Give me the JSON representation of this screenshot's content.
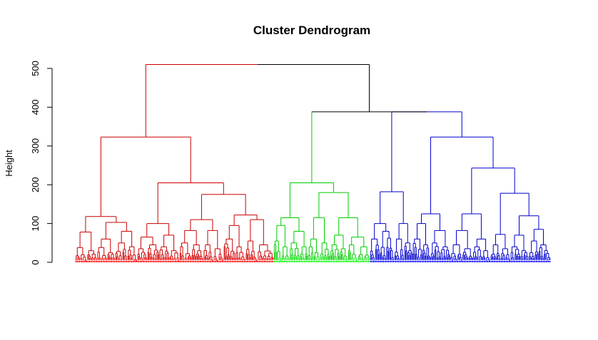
{
  "chart_data": {
    "type": "dendrogram",
    "title": "Cluster Dendrogram",
    "ylabel": "Height",
    "xlabel": "",
    "ylim": [
      0,
      510
    ],
    "yticks": [
      0,
      100,
      200,
      300,
      400,
      500
    ],
    "grid": false,
    "legend": "none",
    "root_height": 510,
    "clusters": [
      {
        "color": "#ff0000",
        "leaf_count": 280
      },
      {
        "color": "#00ff00",
        "leaf_count": 138
      },
      {
        "color": "#0000ff",
        "leaf_count": 245
      }
    ],
    "link_colors": {
      "root": "#000000",
      "red": "#cc0000",
      "green": "#00cc00",
      "blue": "#0000cc"
    },
    "tree": {
      "c": "black",
      "h": 510,
      "ch": [
        {
          "c": "red",
          "h": 323,
          "ch": [
            {
              "c": "red",
              "h": 118,
              "ch": [
                {
                  "c": "red",
                  "h": 78,
                  "ch": [
                    {
                      "c": "red",
                      "h": 38,
                      "n": 12
                    },
                    {
                      "c": "red",
                      "h": 30,
                      "n": 10
                    }
                  ]
                },
                {
                  "c": "red",
                  "h": 103,
                  "ch": [
                    {
                      "c": "red",
                      "h": 60,
                      "ch": [
                        {
                          "c": "red",
                          "h": 38,
                          "n": 10
                        },
                        {
                          "c": "red",
                          "h": 25,
                          "n": 8
                        }
                      ]
                    },
                    {
                      "c": "red",
                      "h": 80,
                      "ch": [
                        {
                          "c": "red",
                          "h": 50,
                          "n": 12
                        },
                        {
                          "c": "red",
                          "h": 40,
                          "n": 10
                        }
                      ]
                    }
                  ]
                }
              ]
            },
            {
              "c": "red",
              "h": 205,
              "ch": [
                {
                  "c": "red",
                  "h": 100,
                  "ch": [
                    {
                      "c": "red",
                      "h": 65,
                      "ch": [
                        {
                          "c": "red",
                          "h": 35,
                          "n": 10
                        },
                        {
                          "c": "red",
                          "h": 45,
                          "n": 12
                        }
                      ]
                    },
                    {
                      "c": "red",
                      "h": 70,
                      "ch": [
                        {
                          "c": "red",
                          "h": 40,
                          "n": 10
                        },
                        {
                          "c": "red",
                          "h": 30,
                          "n": 10
                        }
                      ]
                    }
                  ]
                },
                {
                  "c": "red",
                  "h": 175,
                  "ch": [
                    {
                      "c": "red",
                      "h": 110,
                      "ch": [
                        {
                          "c": "red",
                          "h": 82,
                          "ch": [
                            {
                              "c": "red",
                              "h": 50,
                              "n": 12
                            },
                            {
                              "c": "red",
                              "h": 45,
                              "n": 12
                            }
                          ]
                        },
                        {
                          "c": "red",
                          "h": 82,
                          "ch": [
                            {
                              "c": "red",
                              "h": 45,
                              "n": 10
                            },
                            {
                              "c": "red",
                              "h": 35,
                              "n": 10
                            }
                          ]
                        }
                      ]
                    },
                    {
                      "c": "red",
                      "h": 122,
                      "ch": [
                        {
                          "c": "red",
                          "h": 95,
                          "ch": [
                            {
                              "c": "red",
                              "h": 60,
                              "n": 12
                            },
                            {
                              "c": "red",
                              "h": 40,
                              "n": 10
                            }
                          ]
                        },
                        {
                          "c": "red",
                          "h": 110,
                          "ch": [
                            {
                              "c": "red",
                              "h": 55,
                              "n": 12
                            },
                            {
                              "c": "red",
                              "h": 45,
                              "n": 16
                            }
                          ]
                        }
                      ]
                    }
                  ]
                }
              ]
            }
          ]
        },
        {
          "c": "black",
          "h": 388,
          "ch": [
            {
              "c": "green",
              "h": 388,
              "ch": [
                {
                  "c": "green",
                  "h": 205,
                  "ch": [
                    {
                      "c": "green",
                      "h": 115,
                      "ch": [
                        {
                          "c": "green",
                          "h": 95,
                          "ch": [
                            {
                              "c": "green",
                              "h": 55,
                              "n": 8
                            },
                            {
                              "c": "green",
                              "h": 40,
                              "n": 8
                            }
                          ]
                        },
                        {
                          "c": "green",
                          "h": 80,
                          "ch": [
                            {
                              "c": "green",
                              "h": 50,
                              "n": 10
                            },
                            {
                              "c": "green",
                              "h": 40,
                              "n": 8
                            }
                          ]
                        }
                      ]
                    },
                    {
                      "c": "green",
                      "h": 180,
                      "ch": [
                        {
                          "c": "green",
                          "h": 115,
                          "ch": [
                            {
                              "c": "green",
                              "h": 60,
                              "n": 12
                            },
                            {
                              "c": "green",
                              "h": 50,
                              "n": 10
                            }
                          ]
                        },
                        {
                          "c": "green",
                          "h": 115,
                          "ch": [
                            {
                              "c": "green",
                              "h": 70,
                              "ch": [
                                {
                                  "c": "green",
                                  "h": 45,
                                  "n": 10
                                },
                                {
                                  "c": "green",
                                  "h": 35,
                                  "n": 8
                                }
                              ]
                            },
                            {
                              "c": "green",
                              "h": 65,
                              "ch": [
                                {
                                  "c": "green",
                                  "h": 45,
                                  "n": 10
                                },
                                {
                                  "c": "green",
                                  "h": 40,
                                  "n": 12
                                }
                              ]
                            }
                          ]
                        }
                      ]
                    }
                  ]
                },
                {
                  "c": "green",
                  "h": 0,
                  "n": 0
                }
              ]
            },
            {
              "c": "blue",
              "h": 388,
              "ch": [
                {
                  "c": "blue",
                  "h": 182,
                  "ch": [
                    {
                      "c": "blue",
                      "h": 100,
                      "ch": [
                        {
                          "c": "blue",
                          "h": 60,
                          "n": 10
                        },
                        {
                          "c": "blue",
                          "h": 80,
                          "n": 14
                        }
                      ]
                    },
                    {
                      "c": "blue",
                      "h": 100,
                      "ch": [
                        {
                          "c": "blue",
                          "h": 60,
                          "n": 10
                        },
                        {
                          "c": "blue",
                          "h": 50,
                          "n": 8
                        }
                      ]
                    }
                  ]
                },
                {
                  "c": "blue",
                  "h": 323,
                  "ch": [
                    {
                      "c": "blue",
                      "h": 125,
                      "ch": [
                        {
                          "c": "blue",
                          "h": 100,
                          "ch": [
                            {
                              "c": "blue",
                              "h": 60,
                              "n": 10
                            },
                            {
                              "c": "blue",
                              "h": 45,
                              "n": 8
                            }
                          ]
                        },
                        {
                          "c": "blue",
                          "h": 82,
                          "ch": [
                            {
                              "c": "blue",
                              "h": 50,
                              "n": 10
                            },
                            {
                              "c": "blue",
                              "h": 40,
                              "n": 10
                            }
                          ]
                        }
                      ]
                    },
                    {
                      "c": "blue",
                      "h": 243,
                      "ch": [
                        {
                          "c": "blue",
                          "h": 125,
                          "ch": [
                            {
                              "c": "blue",
                              "h": 82,
                              "ch": [
                                {
                                  "c": "blue",
                                  "h": 45,
                                  "n": 12
                                },
                                {
                                  "c": "blue",
                                  "h": 35,
                                  "n": 10
                                }
                              ]
                            },
                            {
                              "c": "blue",
                              "h": 60,
                              "ch": [
                                {
                                  "c": "blue",
                                  "h": 40,
                                  "n": 10
                                },
                                {
                                  "c": "blue",
                                  "h": 30,
                                  "n": 8
                                }
                              ]
                            }
                          ]
                        },
                        {
                          "c": "blue",
                          "h": 178,
                          "ch": [
                            {
                              "c": "blue",
                              "h": 72,
                              "ch": [
                                {
                                  "c": "blue",
                                  "h": 45,
                                  "n": 10
                                },
                                {
                                  "c": "blue",
                                  "h": 35,
                                  "n": 10
                                }
                              ]
                            },
                            {
                              "c": "blue",
                              "h": 120,
                              "ch": [
                                {
                                  "c": "blue",
                                  "h": 70,
                                  "ch": [
                                    {
                                      "c": "blue",
                                      "h": 40,
                                      "n": 10
                                    },
                                    {
                                      "c": "blue",
                                      "h": 30,
                                      "n": 8
                                    }
                                  ]
                                },
                                {
                                  "c": "blue",
                                  "h": 85,
                                  "ch": [
                                    {
                                      "c": "blue",
                                      "h": 55,
                                      "n": 10
                                    },
                                    {
                                      "c": "blue",
                                      "h": 45,
                                      "n": 12
                                    }
                                  ]
                                }
                              ]
                            }
                          ]
                        }
                      ]
                    }
                  ]
                }
              ]
            }
          ]
        }
      ]
    }
  }
}
